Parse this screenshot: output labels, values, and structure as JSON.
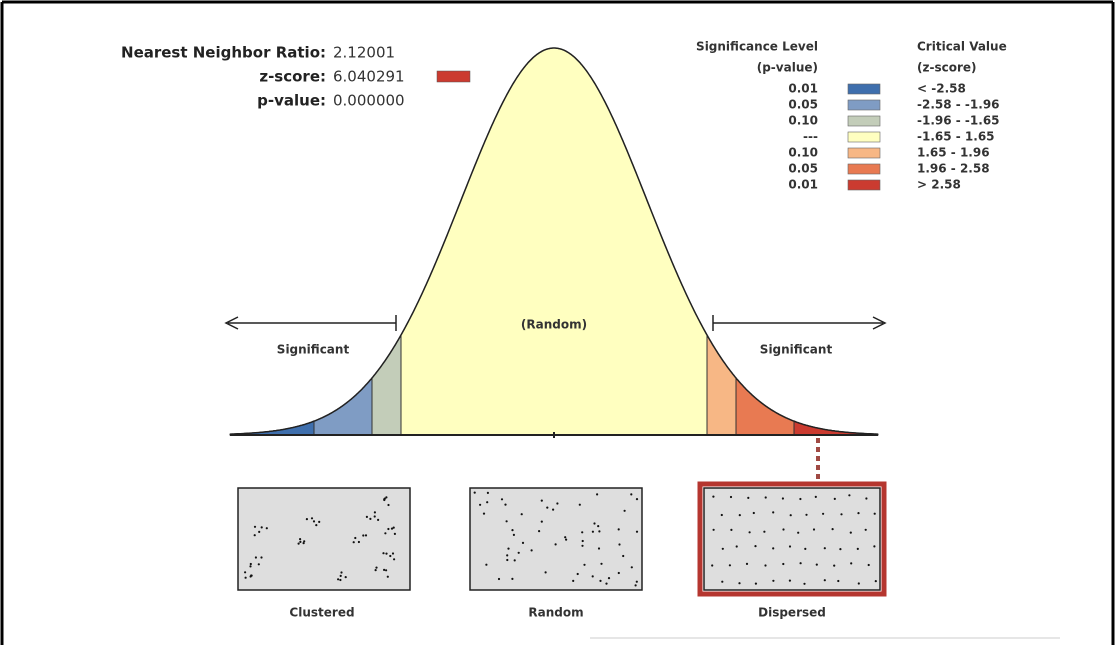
{
  "summary": {
    "ratio_label": "Nearest Neighbor Ratio:",
    "ratio_value": "2.12001",
    "z_label": "z-score:",
    "z_value": "6.040291",
    "p_label": "p-value:",
    "p_value": "0.000000"
  },
  "legend": {
    "significance_header": [
      "Significance Level",
      "(p-value)"
    ],
    "critical_header": [
      "Critical Value",
      "(z-score)"
    ],
    "rows": [
      {
        "p": "0.01",
        "z": "< -2.58",
        "color": "#3f6fad"
      },
      {
        "p": "0.05",
        "z": "-2.58 - -1.96",
        "color": "#7f9cc4"
      },
      {
        "p": "0.10",
        "z": "-1.96 - -1.65",
        "color": "#c3cdb9"
      },
      {
        "p": "---",
        "z": "-1.65 - 1.65",
        "color": "#ffffc0"
      },
      {
        "p": "0.10",
        "z": "1.65 - 1.96",
        "color": "#f7b785"
      },
      {
        "p": "0.05",
        "z": "1.96 - 2.58",
        "color": "#e87a52"
      },
      {
        "p": "0.01",
        "z": "> 2.58",
        "color": "#cb3b30"
      }
    ]
  },
  "curve": {
    "center_label": "(Random)",
    "left_label": "Significant",
    "right_label": "Significant"
  },
  "patterns": [
    {
      "label": "Clustered"
    },
    {
      "label": "Random"
    },
    {
      "label": "Dispersed"
    }
  ]
}
